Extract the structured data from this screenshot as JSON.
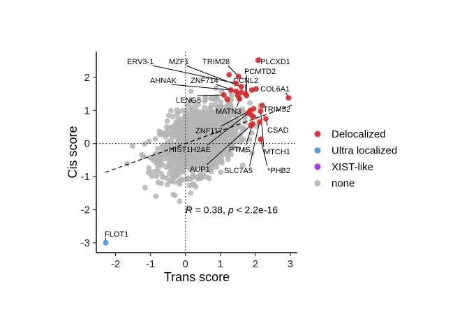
{
  "chart_data": {
    "type": "scatter",
    "xlabel": "Trans score",
    "ylabel": "Cis score",
    "xlim": [
      -2.55,
      3.2
    ],
    "ylim": [
      -3.3,
      2.78
    ],
    "x_ticks": [
      -2,
      -1,
      0,
      1,
      2,
      3
    ],
    "y_ticks": [
      -3,
      -2,
      -1,
      0,
      1,
      2
    ],
    "reference_lines": {
      "vertical_x": 0,
      "horizontal_y": 0,
      "style": "dotted"
    },
    "regression_line": {
      "slope": 0.38,
      "intercept": 0.0,
      "style": "dashed",
      "x_range": [
        -2.3,
        3.05
      ]
    },
    "stat_annotation": {
      "r_symbol": "R",
      "r_text": " = 0.38, ",
      "p_symbol": "p",
      "p_text": " < 2.2e-16",
      "x": 0.0,
      "y": -2.0
    },
    "legend": {
      "position": "right",
      "entries": [
        {
          "label": "Delocalized",
          "color": "#D62728"
        },
        {
          "label": "Ultra localized",
          "color": "#4A90E2"
        },
        {
          "label": "XIST-like",
          "color": "#A020F0"
        },
        {
          "label": "none",
          "color": "#B5B5B5"
        }
      ]
    },
    "background_cloud": {
      "category": "none",
      "color": "#B5B5B5",
      "center": [
        0.4,
        0.1
      ],
      "approx_extent_x": [
        -2.1,
        2.5
      ],
      "approx_extent_y": [
        -2.4,
        1.9
      ]
    },
    "highlighted_points": [
      {
        "x": 2.08,
        "y": 2.52,
        "category": "Delocalized"
      },
      {
        "x": 1.25,
        "y": 2.08,
        "category": "Delocalized"
      },
      {
        "x": 1.52,
        "y": 2.03,
        "category": "Delocalized"
      },
      {
        "x": 1.45,
        "y": 1.82,
        "category": "Delocalized"
      },
      {
        "x": 1.6,
        "y": 1.72,
        "category": "Delocalized"
      },
      {
        "x": 1.72,
        "y": 1.5,
        "category": "Delocalized"
      },
      {
        "x": 1.6,
        "y": 1.55,
        "category": "Delocalized"
      },
      {
        "x": 1.75,
        "y": 1.45,
        "category": "Delocalized"
      },
      {
        "x": 1.45,
        "y": 1.58,
        "category": "Delocalized"
      },
      {
        "x": 1.3,
        "y": 1.62,
        "category": "Delocalized"
      },
      {
        "x": 1.1,
        "y": 1.47,
        "category": "Delocalized"
      },
      {
        "x": 1.2,
        "y": 1.33,
        "category": "Delocalized"
      },
      {
        "x": 1.5,
        "y": 1.45,
        "category": "Delocalized"
      },
      {
        "x": 1.55,
        "y": 1.35,
        "category": "Delocalized"
      },
      {
        "x": 2.02,
        "y": 1.65,
        "category": "Delocalized"
      },
      {
        "x": 1.9,
        "y": 1.62,
        "category": "Delocalized"
      },
      {
        "x": 2.95,
        "y": 1.38,
        "category": "Delocalized"
      },
      {
        "x": 2.2,
        "y": 1.15,
        "category": "Delocalized"
      },
      {
        "x": 2.15,
        "y": 0.98,
        "category": "Delocalized"
      },
      {
        "x": 1.95,
        "y": 1.05,
        "category": "Delocalized"
      },
      {
        "x": 1.85,
        "y": 1.0,
        "category": "Delocalized"
      },
      {
        "x": 1.8,
        "y": 0.92,
        "category": "Delocalized"
      },
      {
        "x": 1.9,
        "y": 0.85,
        "category": "Delocalized"
      },
      {
        "x": 1.95,
        "y": 0.8,
        "category": "Delocalized"
      },
      {
        "x": 2.3,
        "y": 0.75,
        "category": "Delocalized"
      },
      {
        "x": 2.12,
        "y": 0.65,
        "category": "Delocalized"
      },
      {
        "x": 1.92,
        "y": 0.6,
        "category": "Delocalized"
      },
      {
        "x": 1.87,
        "y": 0.55,
        "category": "Delocalized"
      },
      {
        "x": 2.15,
        "y": 0.13,
        "category": "Delocalized"
      },
      {
        "x": -2.28,
        "y": -3.0,
        "category": "Ultra localized"
      }
    ],
    "annotations": [
      {
        "text": "PLCXD1",
        "point": [
          2.08,
          2.52
        ]
      },
      {
        "text": "ERV3-1",
        "point": [
          1.45,
          1.82
        ]
      },
      {
        "text": "MZF1",
        "point": [
          1.6,
          1.72
        ]
      },
      {
        "text": "TRIM28",
        "point": [
          1.52,
          2.03
        ]
      },
      {
        "text": "PCMTD2",
        "point": [
          1.75,
          1.45
        ]
      },
      {
        "text": "CCNL2",
        "point": [
          1.72,
          1.5
        ]
      },
      {
        "text": "AHNAK",
        "point": [
          1.3,
          1.62
        ]
      },
      {
        "text": "ZNF714",
        "point": [
          1.45,
          1.58
        ]
      },
      {
        "text": "COL6A1",
        "point": [
          2.95,
          1.38
        ]
      },
      {
        "text": "LENG8",
        "point": [
          1.1,
          1.47
        ]
      },
      {
        "text": "MATN3",
        "point": [
          1.55,
          1.35
        ]
      },
      {
        "text": "TRIM52",
        "point": [
          2.2,
          1.15
        ]
      },
      {
        "text": "ZNF117",
        "point": [
          1.85,
          1.0
        ]
      },
      {
        "text": "CSAD",
        "point": [
          2.3,
          0.75
        ]
      },
      {
        "text": "HIST1H2AE",
        "point": [
          1.8,
          0.92
        ]
      },
      {
        "text": "PTMS",
        "point": [
          1.92,
          0.6
        ]
      },
      {
        "text": "MTCH1",
        "point": [
          2.15,
          0.98
        ]
      },
      {
        "text": "AUP1",
        "point": [
          1.87,
          0.55
        ]
      },
      {
        "text": "SLC7A5",
        "point": [
          2.12,
          0.65
        ]
      },
      {
        "text": "*PHB2",
        "point": [
          2.15,
          0.13
        ]
      },
      {
        "text": "FLOT1",
        "point": [
          -2.28,
          -3.0
        ]
      }
    ]
  }
}
